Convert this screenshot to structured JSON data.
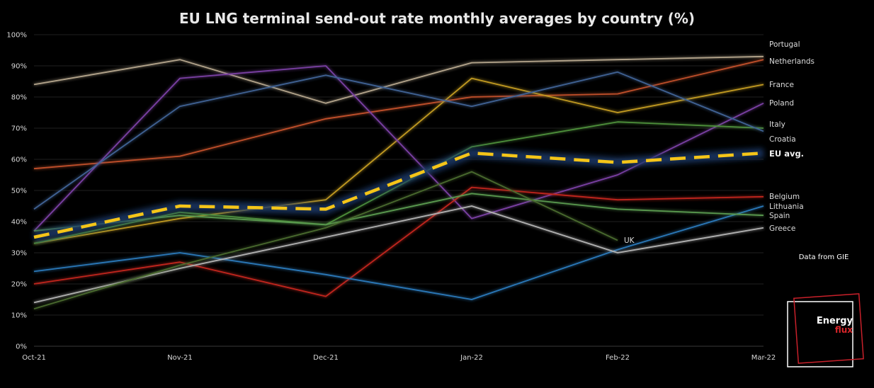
{
  "chart_data": {
    "type": "line",
    "title": "EU LNG terminal send-out rate monthly averages by country (%)",
    "categories": [
      "Oct-21",
      "Nov-21",
      "Dec-21",
      "Jan-22",
      "Feb-22",
      "Mar-22"
    ],
    "ylim": [
      0,
      100
    ],
    "yticks": [
      "0%",
      "10%",
      "20%",
      "30%",
      "40%",
      "50%",
      "60%",
      "70%",
      "80%",
      "90%",
      "100%"
    ],
    "grid": true,
    "legend": "direct labels at line ends (right)",
    "series": [
      {
        "name": "Portugal",
        "color": "#b4a58c",
        "values": [
          84,
          92,
          78,
          91,
          92,
          93
        ]
      },
      {
        "name": "Netherlands",
        "color": "#c0502a",
        "values": [
          57,
          61,
          73,
          80,
          81,
          92
        ]
      },
      {
        "name": "France",
        "color": "#c19a20",
        "values": [
          33,
          41,
          47,
          86,
          75,
          84
        ]
      },
      {
        "name": "Poland",
        "color": "#7a3fa3",
        "values": [
          37,
          86,
          90,
          41,
          55,
          78
        ]
      },
      {
        "name": "Italy",
        "color": "#4e8f3a",
        "values": [
          33,
          43,
          39,
          64,
          72,
          70
        ]
      },
      {
        "name": "Croatia",
        "color": "#3f6294",
        "values": [
          44,
          77,
          87,
          77,
          88,
          69
        ]
      },
      {
        "name": "Belgium",
        "color": "#c0251e",
        "values": [
          20,
          27,
          16,
          51,
          47,
          48
        ]
      },
      {
        "name": "Lithuania",
        "color": "#2a78b8",
        "values": [
          24,
          30,
          23,
          15,
          31,
          45
        ]
      },
      {
        "name": "Spain",
        "color": "#5a9a50",
        "values": [
          37,
          42,
          39,
          49,
          44,
          42
        ]
      },
      {
        "name": "Greece",
        "color": "#b2b2b2",
        "values": [
          14,
          25,
          35,
          45,
          30,
          38
        ]
      },
      {
        "name": "UK",
        "color": "#4a6a2e",
        "values": [
          12,
          26,
          38,
          56,
          34,
          null
        ]
      },
      {
        "name": "EU avg.",
        "color": "#f5c518",
        "values": [
          35,
          45,
          44,
          62,
          59,
          62
        ],
        "dashed": true
      }
    ],
    "annotation": "Data from GIE"
  },
  "logo": {
    "line1": "Energy",
    "line2": "flux",
    "accent": "#d8252a"
  }
}
